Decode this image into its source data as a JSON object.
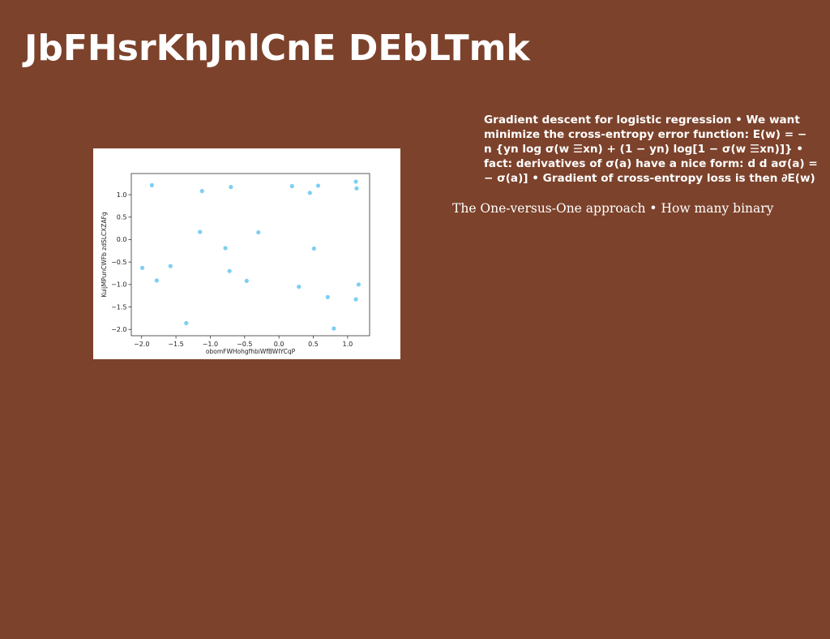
{
  "slide": {
    "title": "JbFHsrKhJnlCnE DEbLTmk",
    "paragraph_1": "Gradient descent for logistic regression • We want\nminimize the cross-entropy error function: E(w) = −\nn {yn log σ(w ☰xn) + (1 − yn) log[1 − σ(w ☰xn)]} •\nfact: derivatives of σ(a) have a nice form: d d aσ(a) =\n− σ(a)] • Gradient of cross-entropy loss is then ∂E(w)",
    "paragraph_2": "The One-versus-One approach • How many binary",
    "background_color": "#7c422b"
  },
  "chart_data": {
    "type": "scatter",
    "xlabel": "obomFWHohgfhbiWfBWIYCqP",
    "ylabel": "KuijMPunCWFb zdSLCXZAFg",
    "xlim": [
      -2.15,
      1.32
    ],
    "ylim": [
      -2.14,
      1.47
    ],
    "x_ticks": [
      -2.0,
      -1.5,
      -1.0,
      -0.5,
      0.0,
      0.5,
      1.0
    ],
    "x_tick_labels": [
      "−2.0",
      "−1.5",
      "−1.0",
      "−0.5",
      "0.0",
      "0.5",
      "1.0"
    ],
    "y_ticks": [
      -2.0,
      -1.5,
      -1.0,
      -0.5,
      0.0,
      0.5,
      1.0
    ],
    "y_tick_labels": [
      "−2.0",
      "−1.5",
      "−1.0",
      "−0.5",
      "0.0",
      "0.5",
      "1.0"
    ],
    "grid": false,
    "marker_color": "#7dcff2",
    "points": [
      {
        "x": -1.85,
        "y": 1.21
      },
      {
        "x": -1.12,
        "y": 1.08
      },
      {
        "x": -0.7,
        "y": 1.17
      },
      {
        "x": 0.19,
        "y": 1.19
      },
      {
        "x": 0.45,
        "y": 1.04
      },
      {
        "x": 0.57,
        "y": 1.2
      },
      {
        "x": 1.12,
        "y": 1.29
      },
      {
        "x": 1.13,
        "y": 1.14
      },
      {
        "x": -1.15,
        "y": 0.17
      },
      {
        "x": -0.3,
        "y": 0.16
      },
      {
        "x": -0.78,
        "y": -0.19
      },
      {
        "x": 0.51,
        "y": -0.2
      },
      {
        "x": -1.99,
        "y": -0.63
      },
      {
        "x": -1.58,
        "y": -0.59
      },
      {
        "x": -0.72,
        "y": -0.7
      },
      {
        "x": -1.78,
        "y": -0.91
      },
      {
        "x": -0.47,
        "y": -0.92
      },
      {
        "x": 0.29,
        "y": -1.05
      },
      {
        "x": 1.16,
        "y": -1.0
      },
      {
        "x": 0.71,
        "y": -1.28
      },
      {
        "x": 1.12,
        "y": -1.33
      },
      {
        "x": -1.35,
        "y": -1.86
      },
      {
        "x": 0.8,
        "y": -1.98
      }
    ]
  }
}
